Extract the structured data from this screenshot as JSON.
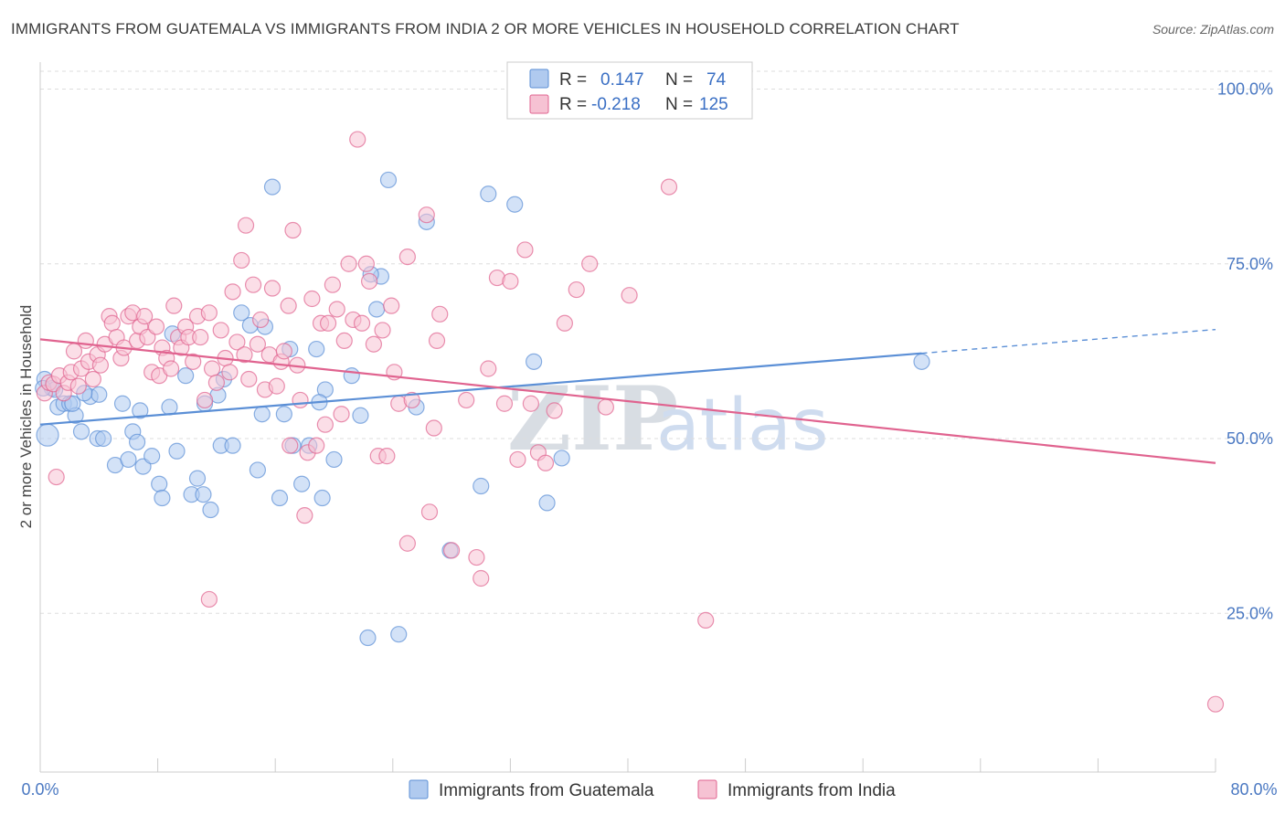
{
  "title": "IMMIGRANTS FROM GUATEMALA VS IMMIGRANTS FROM INDIA 2 OR MORE VEHICLES IN HOUSEHOLD CORRELATION CHART",
  "source": "Source: ZipAtlas.com",
  "watermark": {
    "zip": "ZIP",
    "atlas": "atlas"
  },
  "legend": {
    "r_label": "R =",
    "n_label": "N =",
    "rows": [
      {
        "r": "0.147",
        "n": "74",
        "color": "#8fb4e8"
      },
      {
        "r": "-0.218",
        "n": "125",
        "color": "#f2a8c0"
      }
    ]
  },
  "chart_data": {
    "type": "scatter",
    "xlabel": "",
    "ylabel": "2 or more Vehicles in Household",
    "xlim": [
      0,
      80
    ],
    "ylim": [
      0,
      100
    ],
    "x_tick_labels": [
      "0.0%",
      "80.0%"
    ],
    "y_tick_labels": [
      "25.0%",
      "50.0%",
      "75.0%",
      "100.0%"
    ],
    "y_ticks": [
      25,
      50,
      75,
      100
    ],
    "grid": "horizontal dashed",
    "series": [
      {
        "name": "Immigrants from Guatemala",
        "color": "#5b8fd6",
        "fill": "#aecbf0",
        "trend": {
          "x0": 0,
          "y0": 52.0,
          "x1": 60.0,
          "y1": 62.2,
          "dashed_to_x": 80,
          "dashed_to_y": 65.6
        },
        "points": [
          [
            0.3,
            58.5
          ],
          [
            0.5,
            50.5
          ],
          [
            0.8,
            57.2
          ],
          [
            1.2,
            54.5
          ],
          [
            1.6,
            55.0
          ],
          [
            2.0,
            55.0
          ],
          [
            2.4,
            53.3
          ],
          [
            2.8,
            51.0
          ],
          [
            3.4,
            56.0
          ],
          [
            3.9,
            50.0
          ],
          [
            4.3,
            50.0
          ],
          [
            5.1,
            46.2
          ],
          [
            5.6,
            55.0
          ],
          [
            6.0,
            47.0
          ],
          [
            6.3,
            51.0
          ],
          [
            6.6,
            49.5
          ],
          [
            7.0,
            46.0
          ],
          [
            7.6,
            47.5
          ],
          [
            8.1,
            43.5
          ],
          [
            8.3,
            41.5
          ],
          [
            8.8,
            54.5
          ],
          [
            9.3,
            48.2
          ],
          [
            9.9,
            59.0
          ],
          [
            10.3,
            42.0
          ],
          [
            10.7,
            44.3
          ],
          [
            11.1,
            42.0
          ],
          [
            11.6,
            39.8
          ],
          [
            12.1,
            56.2
          ],
          [
            12.3,
            49.0
          ],
          [
            12.5,
            58.5
          ],
          [
            13.1,
            49.0
          ],
          [
            13.7,
            68.0
          ],
          [
            14.3,
            66.2
          ],
          [
            14.8,
            45.5
          ],
          [
            15.1,
            53.5
          ],
          [
            15.3,
            66.0
          ],
          [
            15.8,
            86.0
          ],
          [
            16.3,
            41.5
          ],
          [
            16.6,
            53.5
          ],
          [
            17.0,
            62.8
          ],
          [
            17.2,
            49.0
          ],
          [
            17.8,
            43.5
          ],
          [
            18.3,
            49.0
          ],
          [
            18.8,
            62.8
          ],
          [
            19.2,
            41.5
          ],
          [
            19.4,
            57.0
          ],
          [
            20.0,
            47.0
          ],
          [
            21.2,
            59.0
          ],
          [
            21.8,
            53.3
          ],
          [
            22.3,
            21.5
          ],
          [
            22.9,
            68.5
          ],
          [
            23.2,
            73.2
          ],
          [
            23.7,
            87.0
          ],
          [
            24.4,
            22.0
          ],
          [
            25.6,
            54.5
          ],
          [
            26.3,
            81.0
          ],
          [
            27.9,
            34.0
          ],
          [
            30.0,
            43.2
          ],
          [
            30.5,
            85.0
          ],
          [
            32.3,
            83.5
          ],
          [
            33.6,
            61.0
          ],
          [
            34.5,
            40.8
          ],
          [
            35.5,
            47.2
          ],
          [
            60.0,
            61.0
          ],
          [
            22.5,
            73.5
          ],
          [
            4.0,
            56.3
          ],
          [
            2.2,
            55.0
          ],
          [
            11.2,
            55.0
          ],
          [
            1.0,
            57.0
          ],
          [
            0.2,
            57.2
          ],
          [
            3.0,
            56.5
          ],
          [
            6.8,
            54.0
          ],
          [
            9.0,
            65.0
          ],
          [
            19.0,
            55.2
          ]
        ]
      },
      {
        "name": "Immigrants from India",
        "color": "#e0638f",
        "fill": "#f7c3d4",
        "trend": {
          "x0": 0,
          "y0": 64.2,
          "x1": 80,
          "y1": 46.5
        },
        "points": [
          [
            0.3,
            56.5
          ],
          [
            0.6,
            58.0
          ],
          [
            0.9,
            57.8
          ],
          [
            1.1,
            44.5
          ],
          [
            1.3,
            59.0
          ],
          [
            1.6,
            56.5
          ],
          [
            1.9,
            58.0
          ],
          [
            2.1,
            59.5
          ],
          [
            2.3,
            62.5
          ],
          [
            2.6,
            57.5
          ],
          [
            2.8,
            60.0
          ],
          [
            3.1,
            64.0
          ],
          [
            3.3,
            61.0
          ],
          [
            3.6,
            58.5
          ],
          [
            3.9,
            62.0
          ],
          [
            4.1,
            60.5
          ],
          [
            4.4,
            63.5
          ],
          [
            4.7,
            67.5
          ],
          [
            4.9,
            66.5
          ],
          [
            5.2,
            64.5
          ],
          [
            5.5,
            61.5
          ],
          [
            5.7,
            63.0
          ],
          [
            6.0,
            67.5
          ],
          [
            6.3,
            68.0
          ],
          [
            6.6,
            64.0
          ],
          [
            6.8,
            66.0
          ],
          [
            7.1,
            67.5
          ],
          [
            7.3,
            64.5
          ],
          [
            7.6,
            59.5
          ],
          [
            7.9,
            66.0
          ],
          [
            8.1,
            59.0
          ],
          [
            8.3,
            63.0
          ],
          [
            8.6,
            61.5
          ],
          [
            8.9,
            60.0
          ],
          [
            9.1,
            69.0
          ],
          [
            9.4,
            64.5
          ],
          [
            9.6,
            63.0
          ],
          [
            9.9,
            66.0
          ],
          [
            10.1,
            64.5
          ],
          [
            10.4,
            61.0
          ],
          [
            10.7,
            67.5
          ],
          [
            10.9,
            64.5
          ],
          [
            11.2,
            55.5
          ],
          [
            11.5,
            68.0
          ],
          [
            11.7,
            60.0
          ],
          [
            12.0,
            58.0
          ],
          [
            12.3,
            65.5
          ],
          [
            12.6,
            61.5
          ],
          [
            12.9,
            59.5
          ],
          [
            13.1,
            71.0
          ],
          [
            13.4,
            63.8
          ],
          [
            13.7,
            75.5
          ],
          [
            13.9,
            62.0
          ],
          [
            14.2,
            58.5
          ],
          [
            14.5,
            72.0
          ],
          [
            14.8,
            63.5
          ],
          [
            15.0,
            67.0
          ],
          [
            15.3,
            57.0
          ],
          [
            15.6,
            62.0
          ],
          [
            15.8,
            71.5
          ],
          [
            16.1,
            57.5
          ],
          [
            16.4,
            61.0
          ],
          [
            16.6,
            62.5
          ],
          [
            16.9,
            69.0
          ],
          [
            17.2,
            79.8
          ],
          [
            17.5,
            60.5
          ],
          [
            17.7,
            55.5
          ],
          [
            18.0,
            39.0
          ],
          [
            18.2,
            48.0
          ],
          [
            18.5,
            70.0
          ],
          [
            18.8,
            49.0
          ],
          [
            19.1,
            66.5
          ],
          [
            19.4,
            52.0
          ],
          [
            19.6,
            66.5
          ],
          [
            19.9,
            72.0
          ],
          [
            20.2,
            68.5
          ],
          [
            20.5,
            53.5
          ],
          [
            20.7,
            64.0
          ],
          [
            21.0,
            75.0
          ],
          [
            21.3,
            67.0
          ],
          [
            21.6,
            92.8
          ],
          [
            21.9,
            66.5
          ],
          [
            22.2,
            75.0
          ],
          [
            22.4,
            72.5
          ],
          [
            22.7,
            63.5
          ],
          [
            23.0,
            47.5
          ],
          [
            23.3,
            65.5
          ],
          [
            23.6,
            47.5
          ],
          [
            23.9,
            69.0
          ],
          [
            24.1,
            59.5
          ],
          [
            24.4,
            55.0
          ],
          [
            25.0,
            76.0
          ],
          [
            25.3,
            55.5
          ],
          [
            26.3,
            82.0
          ],
          [
            26.8,
            51.5
          ],
          [
            27.0,
            64.0
          ],
          [
            27.2,
            67.8
          ],
          [
            28.0,
            34.0
          ],
          [
            29.0,
            55.5
          ],
          [
            29.7,
            33.0
          ],
          [
            30.5,
            60.0
          ],
          [
            31.1,
            73.0
          ],
          [
            31.6,
            55.0
          ],
          [
            32.0,
            72.5
          ],
          [
            33.0,
            77.0
          ],
          [
            33.4,
            55.0
          ],
          [
            33.9,
            48.0
          ],
          [
            34.4,
            46.5
          ],
          [
            35.0,
            54.0
          ],
          [
            35.7,
            66.5
          ],
          [
            36.5,
            71.3
          ],
          [
            37.4,
            75.0
          ],
          [
            38.5,
            54.5
          ],
          [
            40.1,
            70.5
          ],
          [
            42.8,
            86.0
          ],
          [
            45.3,
            24.0
          ],
          [
            80.0,
            12.0
          ],
          [
            11.5,
            27.0
          ],
          [
            25.0,
            35.0
          ],
          [
            30.0,
            30.0
          ],
          [
            17.0,
            49.0
          ],
          [
            14.0,
            80.5
          ],
          [
            26.5,
            39.5
          ],
          [
            32.5,
            47.0
          ]
        ]
      }
    ]
  }
}
